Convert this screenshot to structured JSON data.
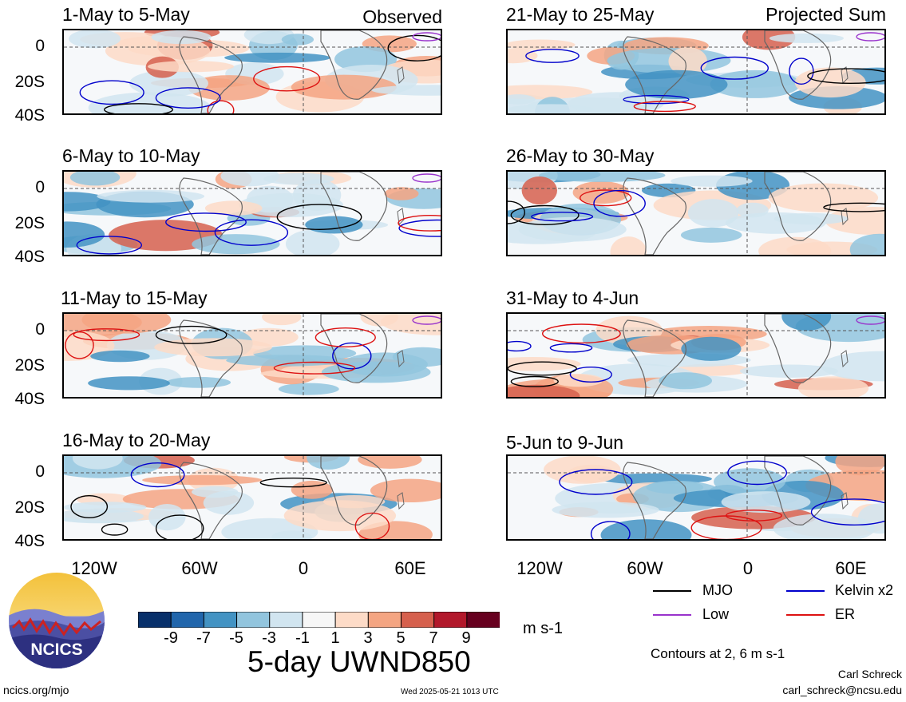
{
  "header": {
    "left_column_label": "Observed",
    "right_column_label": "Projected Sum"
  },
  "panels": [
    {
      "title": "1-May to 5-May"
    },
    {
      "title": "6-May to 10-May"
    },
    {
      "title": "11-May to 15-May"
    },
    {
      "title": "16-May to 20-May"
    },
    {
      "title": "21-May to 25-May"
    },
    {
      "title": "26-May to 30-May"
    },
    {
      "title": "31-May to 4-Jun"
    },
    {
      "title": "5-Jun to 9-Jun"
    }
  ],
  "axes": {
    "lat_ticks": [
      "0",
      "20S",
      "40S"
    ],
    "lon_ticks": [
      "120W",
      "60W",
      "0",
      "60E"
    ]
  },
  "colorbar": {
    "labels": [
      "-9",
      "-7",
      "-5",
      "-3",
      "-1",
      "1",
      "3",
      "5",
      "7",
      "9"
    ],
    "colors": [
      "#08306b",
      "#2166ac",
      "#4393c3",
      "#92c5de",
      "#d1e5f0",
      "#f7f7f7",
      "#fddbc7",
      "#f4a582",
      "#d6604d",
      "#b2182b",
      "#67001f"
    ],
    "units": "m s-1"
  },
  "main_title": "5-day UWND850",
  "legend": {
    "items": [
      {
        "label": "MJO",
        "color": "#000000"
      },
      {
        "label": "Kelvin x2",
        "color": "#0000cc"
      },
      {
        "label": "Low",
        "color": "#9933cc"
      },
      {
        "label": "ER",
        "color": "#dd1111"
      }
    ],
    "note": "Contours at 2, 6 m s-1"
  },
  "credits": {
    "author": "Carl Schreck",
    "email": "carl_schreck@ncsu.edu",
    "site": "ncics.org/mjo",
    "timestamp": "Wed 2025-05-21 1013 UTC",
    "logo_text": "NCICS"
  }
}
